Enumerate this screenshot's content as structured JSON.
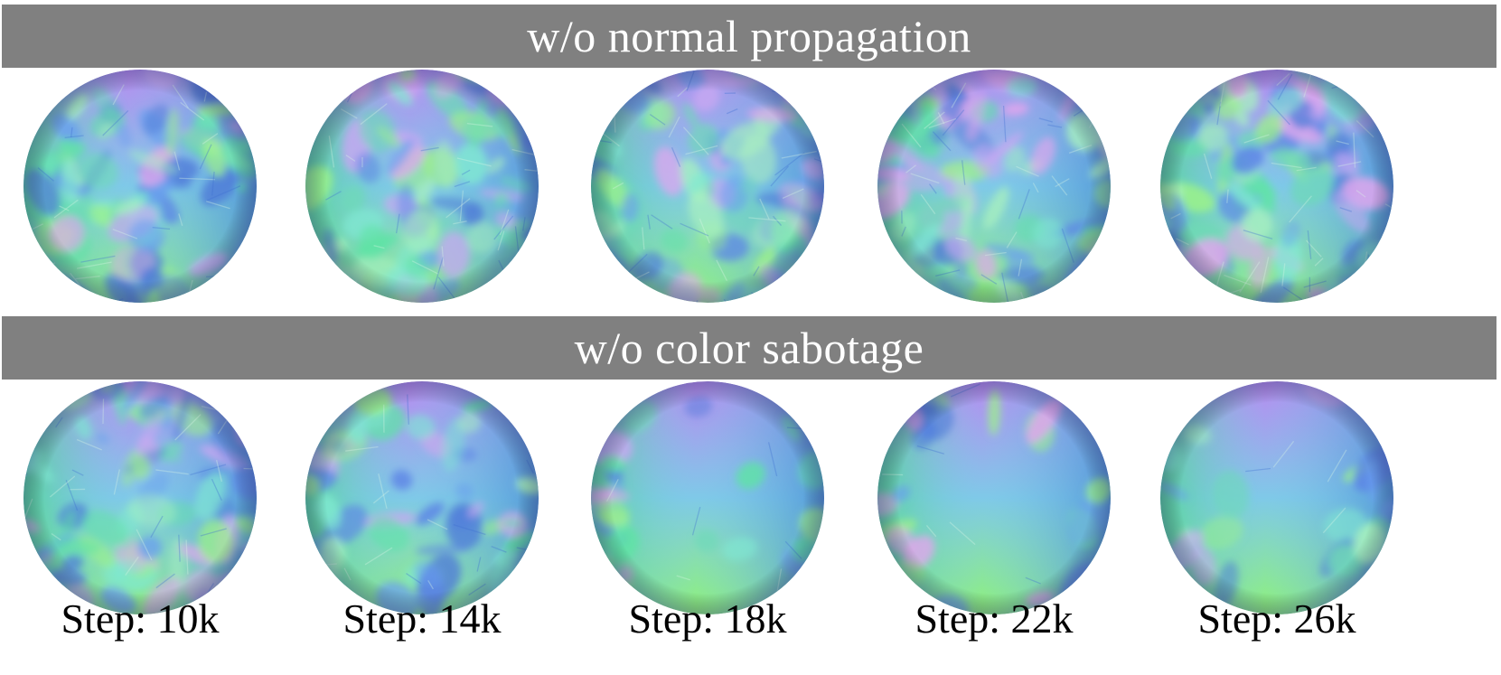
{
  "figure": {
    "rows": [
      {
        "title": "w/o normal propagation",
        "spheres": [
          {
            "step": "Step: 10k",
            "smooth": 0.0
          },
          {
            "step": "Step: 14k",
            "smooth": 0.0
          },
          {
            "step": "Step: 18k",
            "smooth": 0.0
          },
          {
            "step": "Step: 22k",
            "smooth": 0.0
          },
          {
            "step": "Step: 26k",
            "smooth": 0.0
          }
        ]
      },
      {
        "title": "w/o color sabotage",
        "spheres": [
          {
            "step": "Step: 10k",
            "smooth": 0.05
          },
          {
            "step": "Step: 14k",
            "smooth": 0.45
          },
          {
            "step": "Step: 18k",
            "smooth": 0.8
          },
          {
            "step": "Step: 22k",
            "smooth": 0.85
          },
          {
            "step": "Step: 26k",
            "smooth": 0.9
          }
        ]
      }
    ],
    "step_labels": [
      "Step: 10k",
      "Step: 14k",
      "Step: 18k",
      "Step: 22k",
      "Step: 26k"
    ],
    "colors": {
      "banner": "#808080",
      "banner_text": "#ffffff",
      "normal_top": "#b78cf0",
      "normal_left": "#52d68f",
      "normal_right": "#4b8fd6",
      "normal_bottom": "#8ff27a",
      "normal_center": "#7fc9e8"
    }
  }
}
